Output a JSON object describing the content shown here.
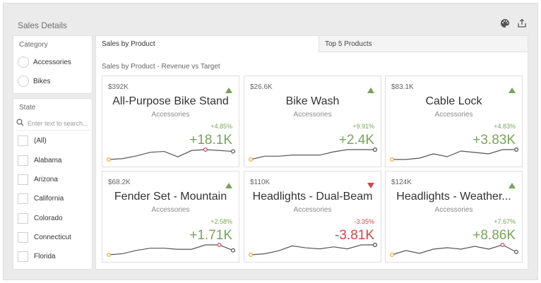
{
  "dashboard": {
    "title": "Sales Details"
  },
  "category": {
    "caption": "Category",
    "options": [
      "Accessories",
      "Bikes"
    ]
  },
  "state": {
    "caption": "State",
    "search_placeholder": "Enter text to search...",
    "options": [
      "(All)",
      "Alabama",
      "Arizona",
      "California",
      "Colorado",
      "Connecticut",
      "Florida"
    ]
  },
  "tabs": [
    {
      "label": "Sales by Product",
      "active": true
    },
    {
      "label": "Top 5 Products",
      "active": false
    }
  ],
  "cards_caption": "Sales by Product - Revenue vs Target",
  "colors": {
    "positive": "#79a35a",
    "negative": "#d64545",
    "start_point": "#f0a830",
    "line": "#555555"
  },
  "cards": [
    {
      "value": "$392K",
      "title": "All-Purpose Bike Stand",
      "subtitle": "Accessories",
      "percent": "+4.85%",
      "delta": "+18.1K",
      "trend": "up",
      "spark": [
        2,
        3,
        6,
        10,
        11,
        5,
        12,
        13,
        12,
        11
      ]
    },
    {
      "value": "$26.6K",
      "title": "Bike Wash",
      "subtitle": "Accessories",
      "percent": "+9.91%",
      "delta": "+2.4K",
      "trend": "up",
      "spark": [
        1,
        4,
        4,
        5,
        5,
        5,
        8,
        10,
        10,
        10
      ]
    },
    {
      "value": "$83.1K",
      "title": "Cable Lock",
      "subtitle": "Accessories",
      "percent": "+4.83%",
      "delta": "+3.83K",
      "trend": "up",
      "spark": [
        2,
        2,
        3,
        6,
        4,
        8,
        7,
        6,
        9,
        9
      ]
    },
    {
      "value": "$68.2K",
      "title": "Fender Set - Mountain",
      "subtitle": "Accessories",
      "percent": "+2.58%",
      "delta": "+1.71K",
      "trend": "up",
      "spark": [
        2,
        3,
        6,
        8,
        8,
        7,
        7,
        11,
        11,
        6
      ]
    },
    {
      "value": "$110K",
      "title": "Headlights - Dual-Beam",
      "subtitle": "Accessories",
      "percent": "-3.35%",
      "delta": "-3.81K",
      "trend": "down",
      "spark": [
        1,
        2,
        5,
        10,
        8,
        7,
        9,
        7,
        11,
        11
      ]
    },
    {
      "value": "$124K",
      "title": "Headlights - Weather...",
      "subtitle": "Accessories",
      "percent": "+7.67%",
      "delta": "+8.86K",
      "trend": "up",
      "spark": [
        3,
        6,
        4,
        7,
        8,
        7,
        9,
        7,
        10,
        5
      ]
    }
  ]
}
